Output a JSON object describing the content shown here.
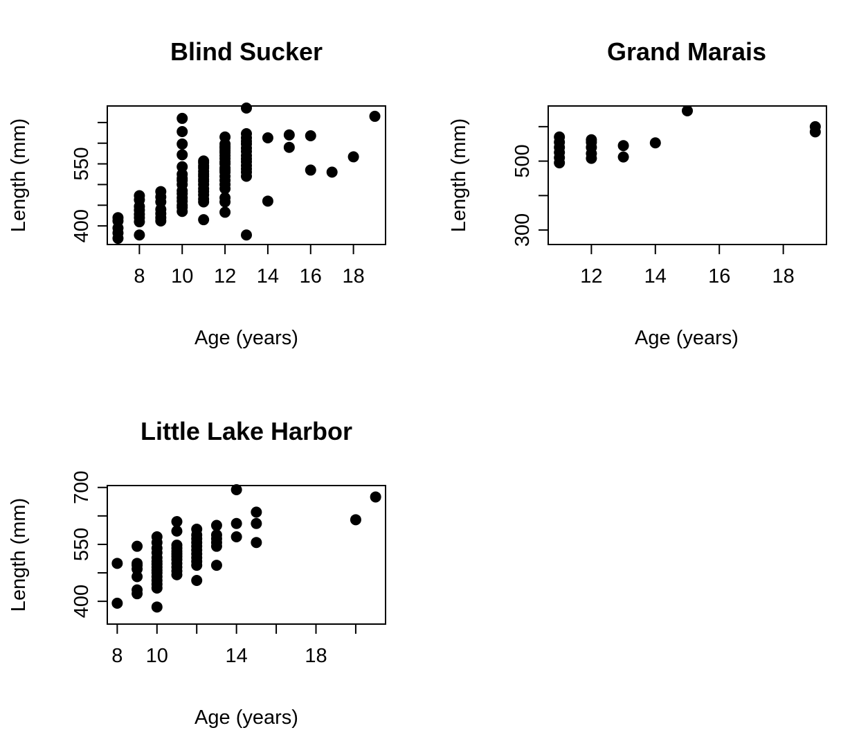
{
  "chart_data": [
    {
      "type": "scatter",
      "title": "Blind Sucker",
      "xlabel": "Age (years)",
      "ylabel": "Length (mm)",
      "xlim": [
        6.5,
        19.5
      ],
      "ylim": [
        355,
        690
      ],
      "xticks": [
        8,
        10,
        12,
        14,
        16,
        18
      ],
      "xtick_labels": [
        "8",
        "10",
        "12",
        "14",
        "16",
        "18"
      ],
      "yticks": [
        400,
        450,
        500,
        550,
        600,
        650
      ],
      "ytick_labels": [
        "400",
        "",
        "",
        "550",
        "",
        ""
      ],
      "grid": false,
      "x": [
        7,
        7,
        7,
        7,
        7,
        8,
        8,
        8,
        8,
        8,
        8,
        8,
        8,
        9,
        9,
        9,
        9,
        9,
        9,
        9,
        10,
        10,
        10,
        10,
        10,
        10,
        10,
        10,
        10,
        10,
        10,
        10,
        10,
        10,
        10,
        10,
        11,
        11,
        11,
        11,
        11,
        11,
        11,
        11,
        11,
        11,
        11,
        11,
        11,
        11,
        11,
        11,
        12,
        12,
        12,
        12,
        12,
        12,
        12,
        12,
        12,
        12,
        12,
        12,
        12,
        12,
        12,
        12,
        12,
        12,
        12,
        12,
        13,
        13,
        13,
        13,
        13,
        13,
        13,
        13,
        13,
        13,
        13,
        13,
        13,
        13,
        13,
        14,
        14,
        15,
        15,
        16,
        16,
        17,
        18,
        19
      ],
      "y": [
        370,
        383,
        395,
        412,
        420,
        378,
        410,
        420,
        428,
        438,
        447,
        463,
        473,
        412,
        420,
        430,
        440,
        458,
        470,
        483,
        435,
        445,
        450,
        460,
        468,
        478,
        485,
        500,
        510,
        515,
        525,
        543,
        572,
        598,
        628,
        660,
        415,
        458,
        465,
        475,
        483,
        490,
        500,
        508,
        513,
        520,
        525,
        532,
        540,
        545,
        553,
        557,
        433,
        458,
        468,
        490,
        500,
        510,
        520,
        530,
        535,
        540,
        550,
        555,
        563,
        570,
        577,
        582,
        588,
        592,
        598,
        615,
        378,
        520,
        530,
        538,
        546,
        555,
        562,
        570,
        580,
        588,
        598,
        605,
        613,
        623,
        685,
        460,
        613,
        590,
        620,
        535,
        618,
        530,
        567,
        665
      ]
    },
    {
      "type": "scatter",
      "title": "Grand Marais",
      "xlabel": "Age (years)",
      "ylabel": "Length (mm)",
      "xlim": [
        10.65,
        19.35
      ],
      "ylim": [
        258,
        660
      ],
      "xticks": [
        12,
        14,
        16,
        18
      ],
      "xtick_labels": [
        "12",
        "14",
        "16",
        "18"
      ],
      "yticks": [
        300,
        400,
        500,
        600
      ],
      "ytick_labels": [
        "300",
        "",
        "500",
        ""
      ],
      "grid": false,
      "x": [
        11,
        11,
        11,
        11,
        11,
        11,
        12,
        12,
        12,
        12,
        12,
        13,
        13,
        14,
        15,
        19,
        19
      ],
      "y": [
        495,
        510,
        525,
        540,
        555,
        570,
        508,
        522,
        540,
        555,
        562,
        512,
        545,
        553,
        646,
        585,
        600
      ]
    },
    {
      "type": "scatter",
      "title": "Little Lake Harbor",
      "xlabel": "Age (years)",
      "ylabel": "Length (mm)",
      "xlim": [
        7.5,
        21.5
      ],
      "ylim": [
        340,
        705
      ],
      "xticks": [
        8,
        10,
        12,
        14,
        16,
        18,
        20
      ],
      "xtick_labels": [
        "8",
        "10",
        "",
        "14",
        "",
        "18",
        ""
      ],
      "yticks": [
        400,
        475,
        550,
        625,
        700
      ],
      "ytick_labels": [
        "400",
        "",
        "550",
        "",
        "700"
      ],
      "grid": false,
      "x": [
        8,
        8,
        9,
        9,
        9,
        9,
        9,
        9,
        9,
        10,
        10,
        10,
        10,
        10,
        10,
        10,
        10,
        10,
        10,
        10,
        10,
        10,
        10,
        10,
        11,
        11,
        11,
        11,
        11,
        11,
        11,
        11,
        11,
        11,
        11,
        11,
        12,
        12,
        12,
        12,
        12,
        12,
        12,
        12,
        12,
        12,
        12,
        13,
        13,
        13,
        13,
        13,
        13,
        14,
        14,
        14,
        15,
        15,
        15,
        20,
        21
      ],
      "y": [
        395,
        500,
        420,
        430,
        465,
        485,
        495,
        500,
        545,
        385,
        435,
        445,
        455,
        465,
        475,
        482,
        490,
        498,
        505,
        515,
        528,
        540,
        555,
        570,
        470,
        480,
        490,
        500,
        510,
        518,
        525,
        532,
        540,
        548,
        585,
        610,
        455,
        495,
        505,
        515,
        525,
        535,
        545,
        555,
        565,
        575,
        590,
        495,
        545,
        555,
        565,
        575,
        600,
        570,
        605,
        694,
        555,
        605,
        635,
        615,
        675
      ]
    }
  ]
}
